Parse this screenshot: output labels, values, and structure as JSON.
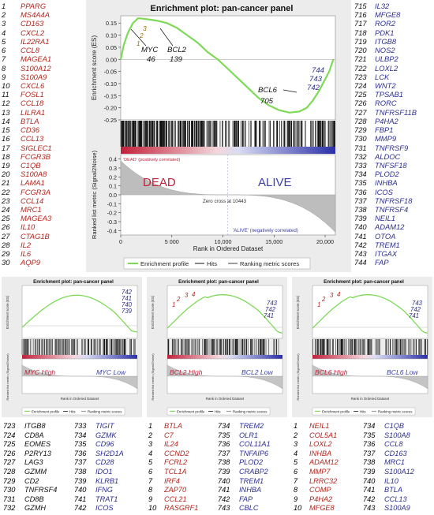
{
  "left_list": [
    {
      "n": "1",
      "g": "PPARG"
    },
    {
      "n": "2",
      "g": "MS4A4A"
    },
    {
      "n": "3",
      "g": "CD163"
    },
    {
      "n": "4",
      "g": "CXCL2"
    },
    {
      "n": "5",
      "g": "IL22RA1"
    },
    {
      "n": "6",
      "g": "CCL8"
    },
    {
      "n": "7",
      "g": "MAGEA1"
    },
    {
      "n": "8",
      "g": "S100A12"
    },
    {
      "n": "9",
      "g": "S100A9"
    },
    {
      "n": "10",
      "g": "CXCL6"
    },
    {
      "n": "11",
      "g": "FOSL1"
    },
    {
      "n": "12",
      "g": "CCL18"
    },
    {
      "n": "13",
      "g": "LILRA1"
    },
    {
      "n": "14",
      "g": "BTLA"
    },
    {
      "n": "15",
      "g": "CD36"
    },
    {
      "n": "16",
      "g": "CCL13"
    },
    {
      "n": "17",
      "g": "SIGLEC1"
    },
    {
      "n": "18",
      "g": "FCGR3B"
    },
    {
      "n": "19",
      "g": "C1QB"
    },
    {
      "n": "20",
      "g": "S100A8"
    },
    {
      "n": "21",
      "g": "LAMA1"
    },
    {
      "n": "22",
      "g": "FCGR3A"
    },
    {
      "n": "23",
      "g": "CCL14"
    },
    {
      "n": "24",
      "g": "MRC1"
    },
    {
      "n": "25",
      "g": "MAGEA3"
    },
    {
      "n": "26",
      "g": "IL10"
    },
    {
      "n": "27",
      "g": "CTAG1B"
    },
    {
      "n": "28",
      "g": "IL2"
    },
    {
      "n": "29",
      "g": "IL6"
    },
    {
      "n": "30",
      "g": "AQP9"
    }
  ],
  "right_list": [
    {
      "n": "715",
      "g": "IL32"
    },
    {
      "n": "716",
      "g": "MFGE8"
    },
    {
      "n": "717",
      "g": "ROR2"
    },
    {
      "n": "718",
      "g": "PDK1"
    },
    {
      "n": "719",
      "g": "ITGB8"
    },
    {
      "n": "720",
      "g": "NOS2"
    },
    {
      "n": "721",
      "g": "ULBP2"
    },
    {
      "n": "722",
      "g": "LOXL2"
    },
    {
      "n": "723",
      "g": "LCK"
    },
    {
      "n": "724",
      "g": "WNT2"
    },
    {
      "n": "725",
      "g": "TPSAB1"
    },
    {
      "n": "726",
      "g": "RORC"
    },
    {
      "n": "727",
      "g": "TNFRSF11B"
    },
    {
      "n": "728",
      "g": "P4HA2"
    },
    {
      "n": "729",
      "g": "FBP1"
    },
    {
      "n": "730",
      "g": "MMP9"
    },
    {
      "n": "731",
      "g": "TNFRSF9"
    },
    {
      "n": "732",
      "g": "ALDOC"
    },
    {
      "n": "733",
      "g": "TNFSF18"
    },
    {
      "n": "734",
      "g": "PLOD2"
    },
    {
      "n": "735",
      "g": "INHBA"
    },
    {
      "n": "736",
      "g": "ICOS"
    },
    {
      "n": "737",
      "g": "TNFRSF18"
    },
    {
      "n": "738",
      "g": "TNFRSF4"
    },
    {
      "n": "739",
      "g": "NEIL1"
    },
    {
      "n": "740",
      "g": "ADAM12"
    },
    {
      "n": "741",
      "g": "OTOA"
    },
    {
      "n": "742",
      "g": "TREM1"
    },
    {
      "n": "743",
      "g": "ITGAX"
    },
    {
      "n": "744",
      "g": "FAP"
    }
  ],
  "main_chart": {
    "title": "Enrichment plot: pan-cancer panel",
    "ylabel_top": "Enrichment score (ES)",
    "ylabel_bottom": "Ranked list metric (Signal2Noise)",
    "xlabel": "Rank in Ordered Dataset",
    "ann_myc": "MYC",
    "ann_myc_rank": "46",
    "ann_bcl2": "BCL2",
    "ann_bcl2_rank": "139",
    "ann_bcl6": "BCL6",
    "ann_bcl6_rank": "705",
    "ann_left_nums": [
      "1",
      "2",
      "3"
    ],
    "ann_right_nums": [
      "742",
      "743",
      "744"
    ],
    "dead_label": "DEAD",
    "alive_label": "ALIVE",
    "pos_corr": "'DEAD' (positively correlated)",
    "neg_corr": "'ALIVE' (negatively correlated)",
    "zero_cross": "Zero cross at 10443",
    "legend": [
      "Enrichment profile",
      "Hits",
      "Ranking metric scores"
    ]
  },
  "small_charts": [
    {
      "title": "Enrichment plot: pan-cancer panel",
      "label_high": "MYC High",
      "label_low": "MYC Low",
      "nums": [
        "742",
        "741",
        "740",
        "739"
      ],
      "left_nums": []
    },
    {
      "title": "Enrichment plot: pan-cancer panel",
      "label_high": "BCL2 High",
      "label_low": "BCL2 Low",
      "nums": [
        "743",
        "742",
        "741"
      ],
      "left_nums": [
        "1",
        "2",
        "3",
        "4"
      ]
    },
    {
      "title": "Enrichment plot: pan-cancer panel",
      "label_high": "BCL6 High",
      "label_low": "BCL6 Low",
      "nums": [
        "743",
        "742",
        "741"
      ],
      "left_nums": [
        "1",
        "2",
        "3",
        "4"
      ]
    }
  ],
  "small_legend": [
    "Enrichment profile",
    "Hits",
    "Ranking metric scores"
  ],
  "bottom_lists": [
    [
      {
        "n": "723",
        "g": "ITGB8"
      },
      {
        "n": "724",
        "g": "CD8A"
      },
      {
        "n": "725",
        "g": "EOMES"
      },
      {
        "n": "726",
        "g": "P2RY13"
      },
      {
        "n": "727",
        "g": "LAG3"
      },
      {
        "n": "728",
        "g": "GZMM"
      },
      {
        "n": "729",
        "g": "CD2"
      },
      {
        "n": "730",
        "g": "TNFRSF4"
      },
      {
        "n": "731",
        "g": "CD8B"
      },
      {
        "n": "732",
        "g": "GZMH"
      }
    ],
    [
      {
        "n": "733",
        "g": "TIGIT"
      },
      {
        "n": "734",
        "g": "GZMK"
      },
      {
        "n": "735",
        "g": "CD96"
      },
      {
        "n": "736",
        "g": "SH2D1A"
      },
      {
        "n": "737",
        "g": "CD28"
      },
      {
        "n": "738",
        "g": "IDO1"
      },
      {
        "n": "739",
        "g": "KLRB1"
      },
      {
        "n": "740",
        "g": "IFNG"
      },
      {
        "n": "741",
        "g": "TRAT1"
      },
      {
        "n": "742",
        "g": "ICOS"
      }
    ],
    [
      {
        "n": "1",
        "g": "BTLA"
      },
      {
        "n": "2",
        "g": "C7"
      },
      {
        "n": "3",
        "g": "IL24"
      },
      {
        "n": "4",
        "g": "CCND2"
      },
      {
        "n": "5",
        "g": "FCRL2"
      },
      {
        "n": "6",
        "g": "TCL1A"
      },
      {
        "n": "7",
        "g": "IRF4"
      },
      {
        "n": "8",
        "g": "ZAP70"
      },
      {
        "n": "9",
        "g": "CCL21"
      },
      {
        "n": "10",
        "g": "RASGRF1"
      }
    ],
    [
      {
        "n": "734",
        "g": "TREM2"
      },
      {
        "n": "735",
        "g": "OLR1"
      },
      {
        "n": "736",
        "g": "COL11A1"
      },
      {
        "n": "737",
        "g": "TNFAIP6"
      },
      {
        "n": "738",
        "g": "PLOD2"
      },
      {
        "n": "739",
        "g": "CRABP2"
      },
      {
        "n": "740",
        "g": "TREM1"
      },
      {
        "n": "741",
        "g": "INHBA"
      },
      {
        "n": "742",
        "g": "FAP"
      },
      {
        "n": "743",
        "g": "CBLC"
      }
    ],
    [
      {
        "n": "1",
        "g": "NEIL1"
      },
      {
        "n": "2",
        "g": "COL5A1"
      },
      {
        "n": "3",
        "g": "LOXL2"
      },
      {
        "n": "4",
        "g": "INHBA"
      },
      {
        "n": "5",
        "g": "ADAM12"
      },
      {
        "n": "6",
        "g": "MMP7"
      },
      {
        "n": "7",
        "g": "LRRC32"
      },
      {
        "n": "8",
        "g": "COMP"
      },
      {
        "n": "9",
        "g": "P4HA2"
      },
      {
        "n": "10",
        "g": "MFGE8"
      }
    ],
    [
      {
        "n": "734",
        "g": "C1QB"
      },
      {
        "n": "735",
        "g": "S100A8"
      },
      {
        "n": "736",
        "g": "CCL8"
      },
      {
        "n": "737",
        "g": "CD163"
      },
      {
        "n": "738",
        "g": "MRC1"
      },
      {
        "n": "739",
        "g": "S100A12"
      },
      {
        "n": "740",
        "g": "IL10"
      },
      {
        "n": "741",
        "g": "BTLA"
      },
      {
        "n": "742",
        "g": "CCL13"
      },
      {
        "n": "743",
        "g": "S100A9"
      }
    ]
  ],
  "chart_data": {
    "type": "line",
    "title": "Enrichment plot: pan-cancer panel",
    "xlabel": "Rank in Ordered Dataset",
    "ylabel": "Enrichment score (ES)",
    "x_ticks": [
      "0",
      "5 000",
      "10,000",
      "15,000",
      "20,000"
    ],
    "y_ticks_es": [
      "0.15",
      "0.10",
      "0.05",
      "0.00",
      "-0.05",
      "-0.10",
      "-0.15",
      "-0.20",
      "-0.25"
    ],
    "y_ticks_metric": [
      "0.4",
      "0.3",
      "0.2",
      "0.1",
      "0.0",
      "-0.1",
      "-0.2",
      "-0.3",
      "-0.4"
    ],
    "xlim": [
      0,
      21000
    ],
    "ylim": [
      -0.25,
      0.18
    ],
    "metric_ylim": [
      -0.45,
      0.45
    ],
    "series": [
      {
        "name": "Enrichment profile",
        "x": [
          0,
          300,
          700,
          1200,
          1700,
          2200,
          2700,
          3500,
          4500,
          5500,
          6500,
          7500,
          8500,
          9500,
          10500,
          11500,
          12500,
          13500,
          14500,
          15500,
          16500,
          17500,
          18200,
          18800,
          19400,
          19900,
          20400,
          20800
        ],
        "values": [
          0.0,
          0.06,
          0.11,
          0.15,
          0.17,
          0.168,
          0.165,
          0.16,
          0.15,
          0.13,
          0.1,
          0.07,
          0.03,
          0.0,
          -0.04,
          -0.08,
          -0.12,
          -0.16,
          -0.19,
          -0.21,
          -0.22,
          -0.215,
          -0.2,
          -0.17,
          -0.13,
          -0.09,
          -0.05,
          0.0
        ]
      }
    ],
    "zero_cross": 10443
  }
}
